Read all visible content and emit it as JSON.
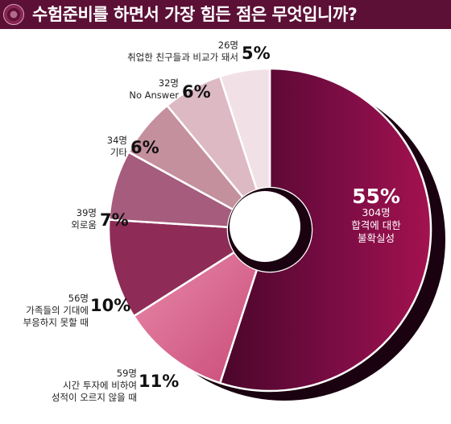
{
  "header": {
    "title": "수험준비를 하면서 가장 힘든 점은 무엇입니까?",
    "accent_color": "#5c1036"
  },
  "chart_data": {
    "type": "pie",
    "title": "수험준비를 하면서 가장 힘든 점은 무엇입니까?",
    "slices": [
      {
        "label_lines": [
          "합격에 대한",
          "불확실성"
        ],
        "count": "304명",
        "percent": "55%",
        "value": 55,
        "color": "#6e0b3e"
      },
      {
        "label_lines": [
          "시간 투자에 비하여",
          "성적이 오르지 않을 때"
        ],
        "count": "59명",
        "percent": "11%",
        "value": 11,
        "color": "#e37a9e"
      },
      {
        "label_lines": [
          "가족들의 기대에",
          "부응하지 못할 때"
        ],
        "count": "56명",
        "percent": "10%",
        "value": 10,
        "color": "#8e2c57"
      },
      {
        "label_lines": [
          "외로움"
        ],
        "count": "39명",
        "percent": "7%",
        "value": 7,
        "color": "#a65c7c"
      },
      {
        "label_lines": [
          "기타"
        ],
        "count": "34명",
        "percent": "6%",
        "value": 6,
        "color": "#c4909e"
      },
      {
        "label_lines": [
          "No Answer"
        ],
        "count": "32명",
        "percent": "6%",
        "value": 6,
        "color": "#ddb9c4"
      },
      {
        "label_lines": [
          "취업한 친구들과 비교가 돼서"
        ],
        "count": "26명",
        "percent": "5%",
        "value": 5,
        "color": "#f1e1e6"
      }
    ]
  }
}
